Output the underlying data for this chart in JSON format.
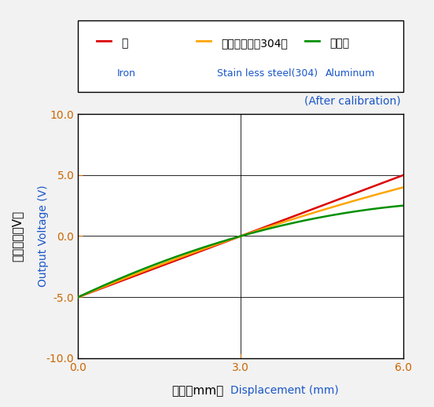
{
  "title_annotation": "(After calibration)",
  "xlabel_jp": "変位（mm）",
  "xlabel_en": "Displacement (mm)",
  "ylabel_jp": "出力電圧（V）",
  "ylabel_en": "Output Voltage (V)",
  "xlim": [
    0.0,
    6.0
  ],
  "ylim": [
    -10.0,
    10.0
  ],
  "xticks": [
    0.0,
    3.0,
    6.0
  ],
  "yticks": [
    -10.0,
    -5.0,
    0.0,
    5.0,
    10.0
  ],
  "iron_color": "#dd0000",
  "stainless_color": "#ffa500",
  "aluminum_color": "#009000",
  "legend_jp": [
    "鉄",
    "ステンレス（304）",
    "アルミ"
  ],
  "legend_en": [
    "Iron",
    "Stain less steel(304)",
    "Aluminum"
  ],
  "background_color": "#f2f2f2",
  "plot_bg_color": "#ffffff",
  "tick_color": "#cc6600",
  "linewidth": 1.8,
  "en_color": "#1a56c8",
  "jp_color": "#000000"
}
